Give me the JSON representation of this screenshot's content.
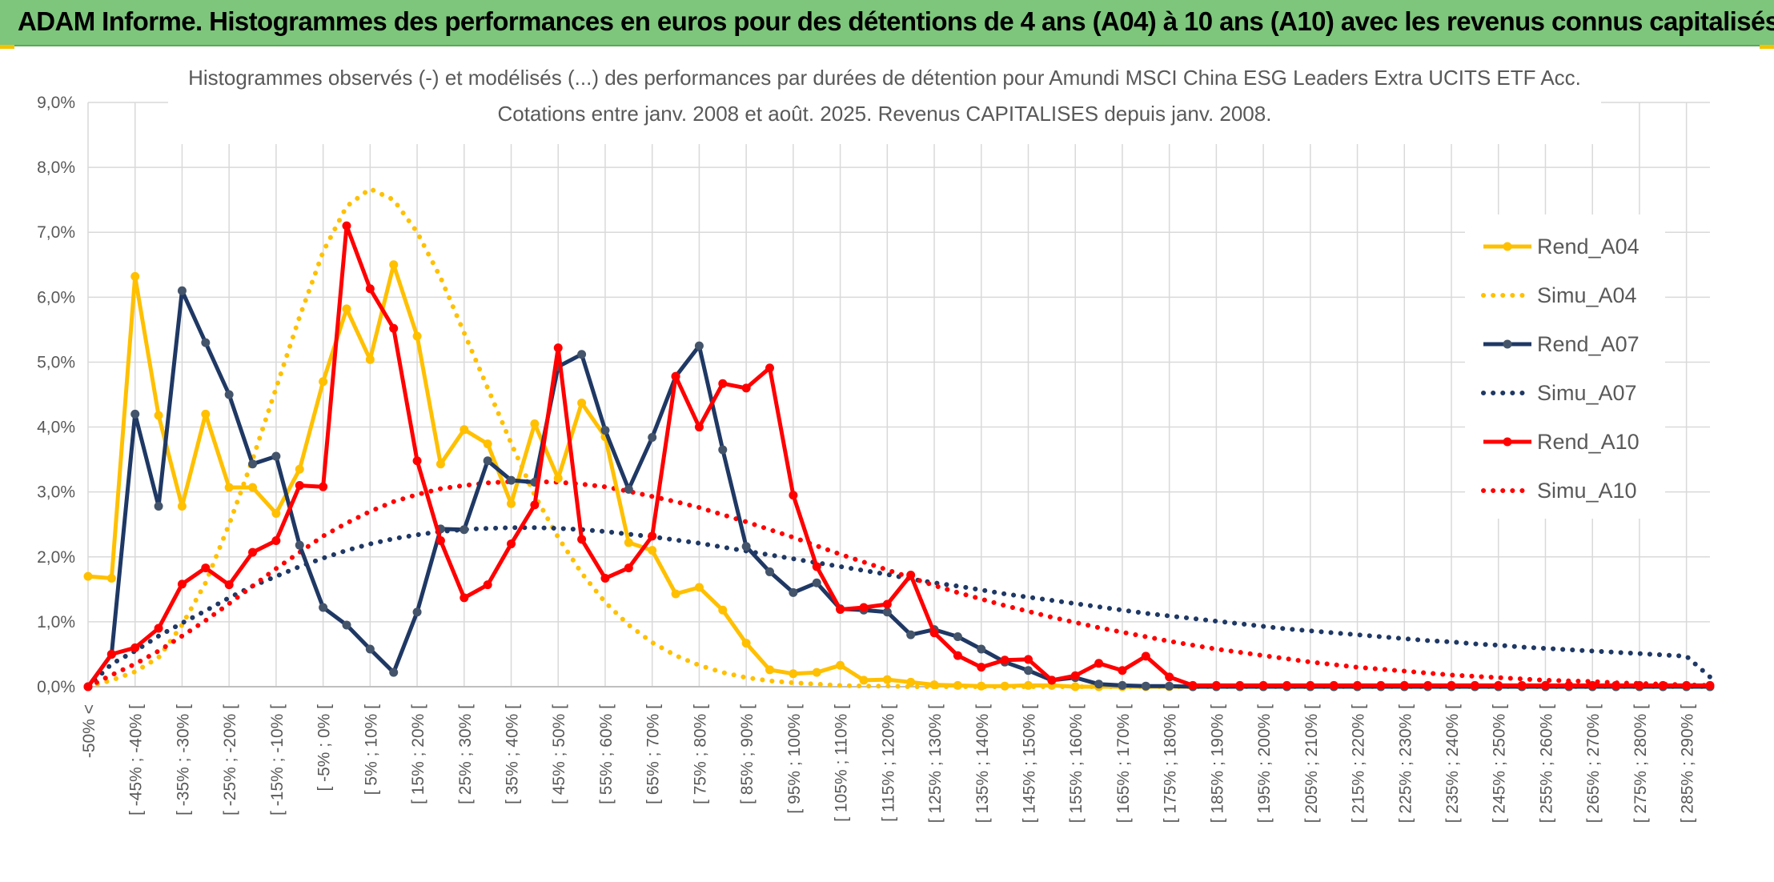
{
  "header": {
    "banner_title": "ADAM Informe. Histogrammes des performances en euros pour des détentions de 4 ans (A04) à 10 ans (A10) avec les revenus connus capitalisés"
  },
  "colors": {
    "banner_bg": "#7dc67c",
    "a04": "#ffc000",
    "a07": "#1f3864",
    "a10": "#ff0000",
    "grid": "#d9d9d9",
    "marker_a07": "#44546a"
  },
  "chart_data": {
    "type": "line",
    "title": "Histogrammes observés (-) et modélisés (...) des performances par durées de détention pour Amundi MSCI China ESG Leaders Extra UCITS ETF Acc.",
    "subtitle": "Cotations entre janv. 2008 et août. 2025. Revenus CAPITALISES depuis janv. 2008.",
    "xlabel": "",
    "ylabel": "",
    "ylim": [
      0,
      9
    ],
    "yticks": [
      "0,0%",
      "1,0%",
      "2,0%",
      "3,0%",
      "4,0%",
      "5,0%",
      "6,0%",
      "7,0%",
      "8,0%",
      "9,0%"
    ],
    "grid": true,
    "legend_position": "top-right",
    "x_count": 70,
    "x_labels": [
      {
        "i": 0,
        "text": "-50% <"
      },
      {
        "i": 2,
        "text": "[ -45% ; -40% ["
      },
      {
        "i": 4,
        "text": "[ -35% ; -30% ["
      },
      {
        "i": 6,
        "text": "[ -25% ; -20% ["
      },
      {
        "i": 8,
        "text": "[ -15% ; -10% ["
      },
      {
        "i": 10,
        "text": "[ -5% ; 0% ["
      },
      {
        "i": 12,
        "text": "[ 5% ; 10% ["
      },
      {
        "i": 14,
        "text": "[ 15% ; 20% ["
      },
      {
        "i": 16,
        "text": "[ 25% ; 30% ["
      },
      {
        "i": 18,
        "text": "[ 35% ; 40% ["
      },
      {
        "i": 20,
        "text": "[ 45% ; 50% ["
      },
      {
        "i": 22,
        "text": "[ 55% ; 60% ["
      },
      {
        "i": 24,
        "text": "[ 65% ; 70% ["
      },
      {
        "i": 26,
        "text": "[ 75% ; 80% ["
      },
      {
        "i": 28,
        "text": "[ 85% ; 90% ["
      },
      {
        "i": 30,
        "text": "[ 95% ; 100% ["
      },
      {
        "i": 32,
        "text": "[ 105% ; 110% ["
      },
      {
        "i": 34,
        "text": "[ 115% ; 120% ["
      },
      {
        "i": 36,
        "text": "[ 125% ; 130% ["
      },
      {
        "i": 38,
        "text": "[ 135% ; 140% ["
      },
      {
        "i": 40,
        "text": "[ 145% ; 150% ["
      },
      {
        "i": 42,
        "text": "[ 155% ; 160% ["
      },
      {
        "i": 44,
        "text": "[ 165% ; 170% ["
      },
      {
        "i": 46,
        "text": "[ 175% ; 180% ["
      },
      {
        "i": 48,
        "text": "[ 185% ; 190% ["
      },
      {
        "i": 50,
        "text": "[ 195% ; 200% ["
      },
      {
        "i": 52,
        "text": "[ 205% ; 210% ["
      },
      {
        "i": 54,
        "text": "[ 215% ; 220% ["
      },
      {
        "i": 56,
        "text": "[ 225% ; 230% ["
      },
      {
        "i": 58,
        "text": "[ 235% ; 240% ["
      },
      {
        "i": 60,
        "text": "[ 245% ; 250% ["
      },
      {
        "i": 62,
        "text": "[ 255% ; 260% ["
      },
      {
        "i": 64,
        "text": "[ 265% ; 270% ["
      },
      {
        "i": 66,
        "text": "[ 275% ; 280% ["
      },
      {
        "i": 68,
        "text": "[ 285% ; 290% ["
      }
    ],
    "series": [
      {
        "name": "Rend_A04",
        "style": "solid",
        "color": "#ffc000",
        "marker": true,
        "values": [
          1.7,
          1.67,
          6.32,
          4.18,
          2.78,
          4.2,
          3.07,
          3.07,
          2.67,
          3.35,
          4.7,
          5.82,
          5.04,
          6.5,
          5.4,
          3.43,
          3.96,
          3.74,
          2.82,
          4.05,
          3.21,
          4.37,
          3.85,
          2.22,
          2.1,
          1.43,
          1.53,
          1.18,
          0.67,
          0.26,
          0.2,
          0.22,
          0.33,
          0.1,
          0.11,
          0.07,
          0.03,
          0.02,
          0.01,
          0.01,
          0.02,
          0.02,
          0.0,
          0.0,
          0.0,
          0.0,
          0.0,
          0.0,
          0.0,
          0.0,
          0.0,
          0.0,
          0.0,
          0.0,
          0.0,
          0.0,
          0.0,
          0.0,
          0.0,
          0.0,
          0.0,
          0.0,
          0.0,
          0.0,
          0.0,
          0.0,
          0.0,
          0.0,
          0.0,
          0.0
        ]
      },
      {
        "name": "Simu_A04",
        "style": "dotted",
        "color": "#ffc000",
        "marker": false,
        "values": [
          0.0,
          0.1,
          0.23,
          0.45,
          0.95,
          1.6,
          2.5,
          3.5,
          4.6,
          5.7,
          6.7,
          7.4,
          7.67,
          7.5,
          7.0,
          6.3,
          5.45,
          4.6,
          3.75,
          2.95,
          2.3,
          1.75,
          1.3,
          0.95,
          0.68,
          0.48,
          0.33,
          0.22,
          0.14,
          0.09,
          0.06,
          0.04,
          0.02,
          0.01,
          0.01,
          0.0,
          0.0,
          0.0,
          0.0,
          0.0,
          0.0,
          0.0,
          0.0,
          0.0,
          0.0,
          0.0,
          0.0,
          0.0,
          0.0,
          0.0,
          0.0,
          0.0,
          0.0,
          0.0,
          0.0,
          0.0,
          0.0,
          0.0,
          0.0,
          0.0,
          0.0,
          0.0,
          0.0,
          0.0,
          0.0,
          0.0,
          0.0,
          0.0,
          0.0,
          0.0
        ]
      },
      {
        "name": "Rend_A07",
        "style": "solid",
        "color": "#1f3864",
        "marker": true,
        "values": [
          0.0,
          0.5,
          4.2,
          2.78,
          6.1,
          5.3,
          4.5,
          3.43,
          3.55,
          2.18,
          1.22,
          0.95,
          0.58,
          0.22,
          1.15,
          2.43,
          2.42,
          3.48,
          3.18,
          3.15,
          4.93,
          5.12,
          3.95,
          3.04,
          3.84,
          4.78,
          5.25,
          3.65,
          2.16,
          1.77,
          1.45,
          1.6,
          1.2,
          1.18,
          1.15,
          0.8,
          0.88,
          0.77,
          0.58,
          0.38,
          0.25,
          0.1,
          0.14,
          0.04,
          0.02,
          0.01,
          0.01,
          0.0,
          0.0,
          0.0,
          0.0,
          0.0,
          0.0,
          0.0,
          0.0,
          0.0,
          0.0,
          0.0,
          0.0,
          0.0,
          0.0,
          0.0,
          0.0,
          0.0,
          0.0,
          0.0,
          0.0,
          0.0,
          0.0,
          0.0
        ]
      },
      {
        "name": "Simu_A07",
        "style": "dotted",
        "color": "#1f3864",
        "marker": false,
        "values": [
          0.0,
          0.35,
          0.55,
          0.78,
          0.98,
          1.17,
          1.37,
          1.55,
          1.7,
          1.85,
          1.98,
          2.1,
          2.2,
          2.28,
          2.34,
          2.39,
          2.42,
          2.44,
          2.45,
          2.45,
          2.44,
          2.42,
          2.39,
          2.35,
          2.31,
          2.26,
          2.21,
          2.15,
          2.09,
          2.03,
          1.97,
          1.91,
          1.85,
          1.79,
          1.73,
          1.66,
          1.6,
          1.55,
          1.49,
          1.43,
          1.38,
          1.33,
          1.28,
          1.23,
          1.18,
          1.13,
          1.09,
          1.05,
          1.01,
          0.97,
          0.93,
          0.89,
          0.86,
          0.83,
          0.8,
          0.77,
          0.74,
          0.71,
          0.69,
          0.66,
          0.64,
          0.61,
          0.59,
          0.57,
          0.55,
          0.53,
          0.51,
          0.49,
          0.47,
          0.15
        ]
      },
      {
        "name": "Rend_A10",
        "style": "solid",
        "color": "#ff0000",
        "marker": true,
        "values": [
          0.0,
          0.5,
          0.6,
          0.9,
          1.58,
          1.83,
          1.57,
          2.07,
          2.25,
          3.1,
          3.08,
          7.1,
          6.13,
          5.52,
          3.48,
          2.25,
          1.37,
          1.57,
          2.2,
          2.8,
          5.22,
          2.27,
          1.67,
          1.83,
          2.32,
          4.78,
          4.0,
          4.67,
          4.6,
          4.91,
          2.95,
          1.85,
          1.19,
          1.22,
          1.27,
          1.72,
          0.83,
          0.48,
          0.3,
          0.41,
          0.42,
          0.1,
          0.17,
          0.36,
          0.25,
          0.47,
          0.15,
          0.02,
          0.02,
          0.02,
          0.02,
          0.02,
          0.02,
          0.02,
          0.02,
          0.02,
          0.02,
          0.02,
          0.02,
          0.02,
          0.02,
          0.02,
          0.02,
          0.02,
          0.02,
          0.02,
          0.02,
          0.02,
          0.02,
          0.02
        ]
      },
      {
        "name": "Simu_A10",
        "style": "dotted",
        "color": "#ff0000",
        "marker": false,
        "values": [
          0.0,
          0.18,
          0.35,
          0.55,
          0.78,
          1.02,
          1.28,
          1.55,
          1.82,
          2.07,
          2.32,
          2.52,
          2.7,
          2.85,
          2.96,
          3.05,
          3.1,
          3.14,
          3.16,
          3.16,
          3.15,
          3.12,
          3.08,
          3.01,
          2.93,
          2.85,
          2.76,
          2.65,
          2.54,
          2.42,
          2.3,
          2.17,
          2.04,
          1.92,
          1.8,
          1.68,
          1.56,
          1.45,
          1.35,
          1.25,
          1.16,
          1.07,
          0.99,
          0.91,
          0.84,
          0.77,
          0.7,
          0.64,
          0.58,
          0.53,
          0.48,
          0.43,
          0.38,
          0.34,
          0.3,
          0.27,
          0.24,
          0.21,
          0.18,
          0.16,
          0.14,
          0.12,
          0.1,
          0.09,
          0.08,
          0.06,
          0.05,
          0.04,
          0.03,
          0.02
        ]
      }
    ]
  }
}
